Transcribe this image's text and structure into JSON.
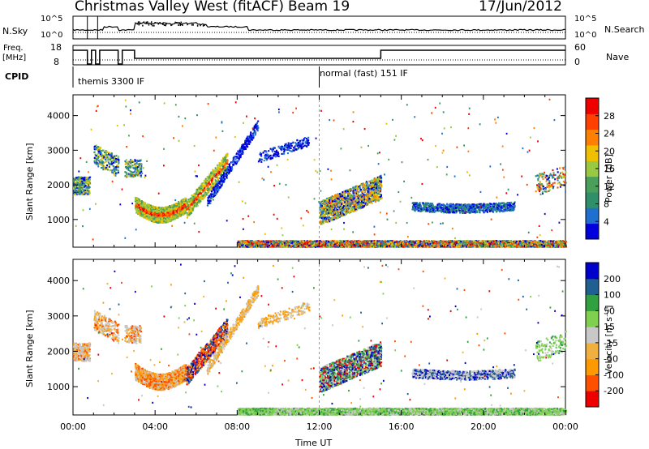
{
  "header": {
    "station": "Christmas Valley West (fitACF)",
    "beam": "Beam 19",
    "date": "17/Jun/2012"
  },
  "noise_panel": {
    "left_label": "N.Sky",
    "right_label": "N.Search",
    "left_ticks": [
      "10^5",
      "10^0"
    ],
    "right_ticks": [
      "10^5",
      "10^0"
    ]
  },
  "freq_panel": {
    "left_label_1": "Freq.",
    "left_label_2": "[MHz]",
    "right_label": "Nave",
    "left_ticks": [
      "18",
      "8"
    ],
    "right_ticks": [
      "60",
      "0"
    ]
  },
  "cpid": {
    "label": "CPID",
    "modes": [
      "themis 3300 IF",
      "normal (fast) 151 IF"
    ]
  },
  "chart_data": [
    {
      "type": "heatmap",
      "name": "power",
      "ylabel": "Slant Range [km]",
      "xlabel": "Time UT",
      "x_ticks": [
        "00:00",
        "04:00",
        "08:00",
        "12:00",
        "16:00",
        "20:00",
        "00:00"
      ],
      "y_ticks": [
        1000,
        2000,
        3000,
        4000
      ],
      "ylim": [
        200,
        4600
      ],
      "xlim_hours": [
        0,
        24
      ],
      "colorbar": {
        "label": "Power [dB]",
        "ticks": [
          4,
          8,
          12,
          16,
          20,
          24,
          28
        ],
        "colors": [
          "#0000dd",
          "#1f6fd0",
          "#2f8f6a",
          "#4aa05a",
          "#9ac840",
          "#f0c000",
          "#ff8000",
          "#ff4000",
          "#ee0000"
        ]
      }
    },
    {
      "type": "heatmap",
      "name": "velocity",
      "ylabel": "Slant Range [km]",
      "xlabel": "Time UT",
      "x_ticks": [
        "00:00",
        "04:00",
        "08:00",
        "12:00",
        "16:00",
        "20:00",
        "00:00"
      ],
      "y_ticks": [
        1000,
        2000,
        3000,
        4000
      ],
      "ylim": [
        200,
        4600
      ],
      "xlim_hours": [
        0,
        24
      ],
      "colorbar": {
        "label": "Velocity [m s⁻¹]",
        "ticks": [
          -200,
          -100,
          -50,
          -15,
          15,
          50,
          100,
          200
        ],
        "colors": [
          "#ee0000",
          "#ff5000",
          "#ff9900",
          "#f0b040",
          "#c8c8c8",
          "#80d050",
          "#30a040",
          "#206090",
          "#0000cc"
        ]
      }
    }
  ],
  "axis": {
    "xlabel": "Time UT"
  }
}
